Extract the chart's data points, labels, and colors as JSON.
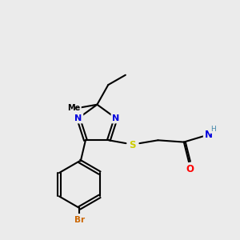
{
  "bg_color": "#ebebeb",
  "colors": {
    "N": "#0000dd",
    "S": "#cccc00",
    "O": "#ff0000",
    "Br": "#cc6600",
    "H": "#4488aa",
    "C": "#000000"
  }
}
